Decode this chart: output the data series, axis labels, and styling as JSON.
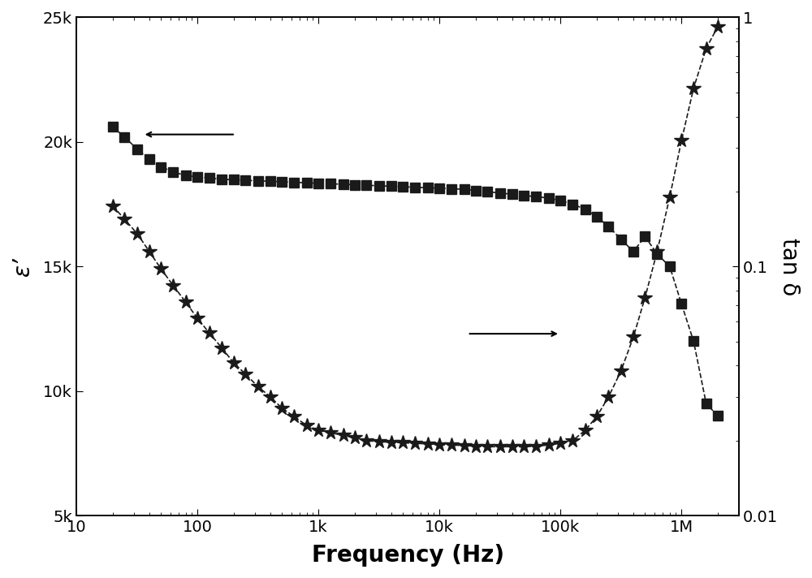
{
  "freq_epsilon": [
    20,
    25,
    32,
    40,
    50,
    63,
    80,
    100,
    126,
    160,
    200,
    250,
    316,
    400,
    500,
    630,
    800,
    1000,
    1260,
    1600,
    2000,
    2500,
    3160,
    4000,
    5000,
    6300,
    8000,
    10000,
    12600,
    16000,
    20000,
    25000,
    31600,
    40000,
    50000,
    63000,
    80000,
    100000,
    126000,
    160000,
    200000,
    250000,
    316000,
    400000,
    500000,
    630000,
    800000,
    1000000,
    1260000,
    1600000,
    2000000
  ],
  "epsilon": [
    20600,
    20200,
    19700,
    19300,
    19000,
    18800,
    18650,
    18600,
    18550,
    18500,
    18480,
    18460,
    18440,
    18420,
    18400,
    18380,
    18360,
    18340,
    18320,
    18300,
    18280,
    18260,
    18240,
    18220,
    18200,
    18180,
    18160,
    18140,
    18120,
    18100,
    18050,
    18000,
    17950,
    17900,
    17850,
    17800,
    17750,
    17650,
    17500,
    17300,
    17000,
    16600,
    16100,
    15600,
    16200,
    15500,
    15000,
    13500,
    12000,
    9500,
    9000
  ],
  "freq_tand": [
    20,
    25,
    32,
    40,
    50,
    63,
    80,
    100,
    126,
    160,
    200,
    250,
    316,
    400,
    500,
    630,
    800,
    1000,
    1260,
    1600,
    2000,
    2500,
    3160,
    4000,
    5000,
    6300,
    8000,
    10000,
    12600,
    16000,
    20000,
    25000,
    31600,
    40000,
    50000,
    63000,
    80000,
    100000,
    126000,
    160000,
    200000,
    250000,
    316000,
    400000,
    500000,
    630000,
    800000,
    1000000,
    1260000,
    1600000,
    2000000
  ],
  "tand": [
    0.175,
    0.155,
    0.135,
    0.115,
    0.098,
    0.084,
    0.072,
    0.062,
    0.054,
    0.047,
    0.041,
    0.037,
    0.033,
    0.03,
    0.027,
    0.025,
    0.023,
    0.022,
    0.0215,
    0.021,
    0.0205,
    0.02,
    0.0198,
    0.0197,
    0.0196,
    0.0195,
    0.0194,
    0.0193,
    0.0192,
    0.0191,
    0.019,
    0.0189,
    0.0189,
    0.0189,
    0.0189,
    0.019,
    0.0192,
    0.0195,
    0.02,
    0.022,
    0.025,
    0.03,
    0.038,
    0.052,
    0.075,
    0.115,
    0.19,
    0.32,
    0.52,
    0.75,
    0.92
  ],
  "xlabel": "Frequency (Hz)",
  "ylabel_left": "ε’",
  "ylabel_right": "tan δ",
  "xlim": [
    10,
    3000000
  ],
  "ylim_left": [
    5000,
    25000
  ],
  "ylim_right": [
    0.01,
    1
  ],
  "yticks_left": [
    5000,
    10000,
    15000,
    20000,
    25000
  ],
  "ytick_labels_left": [
    "5k",
    "10k",
    "15k",
    "20k",
    "25k"
  ],
  "color": "#1a1a1a"
}
